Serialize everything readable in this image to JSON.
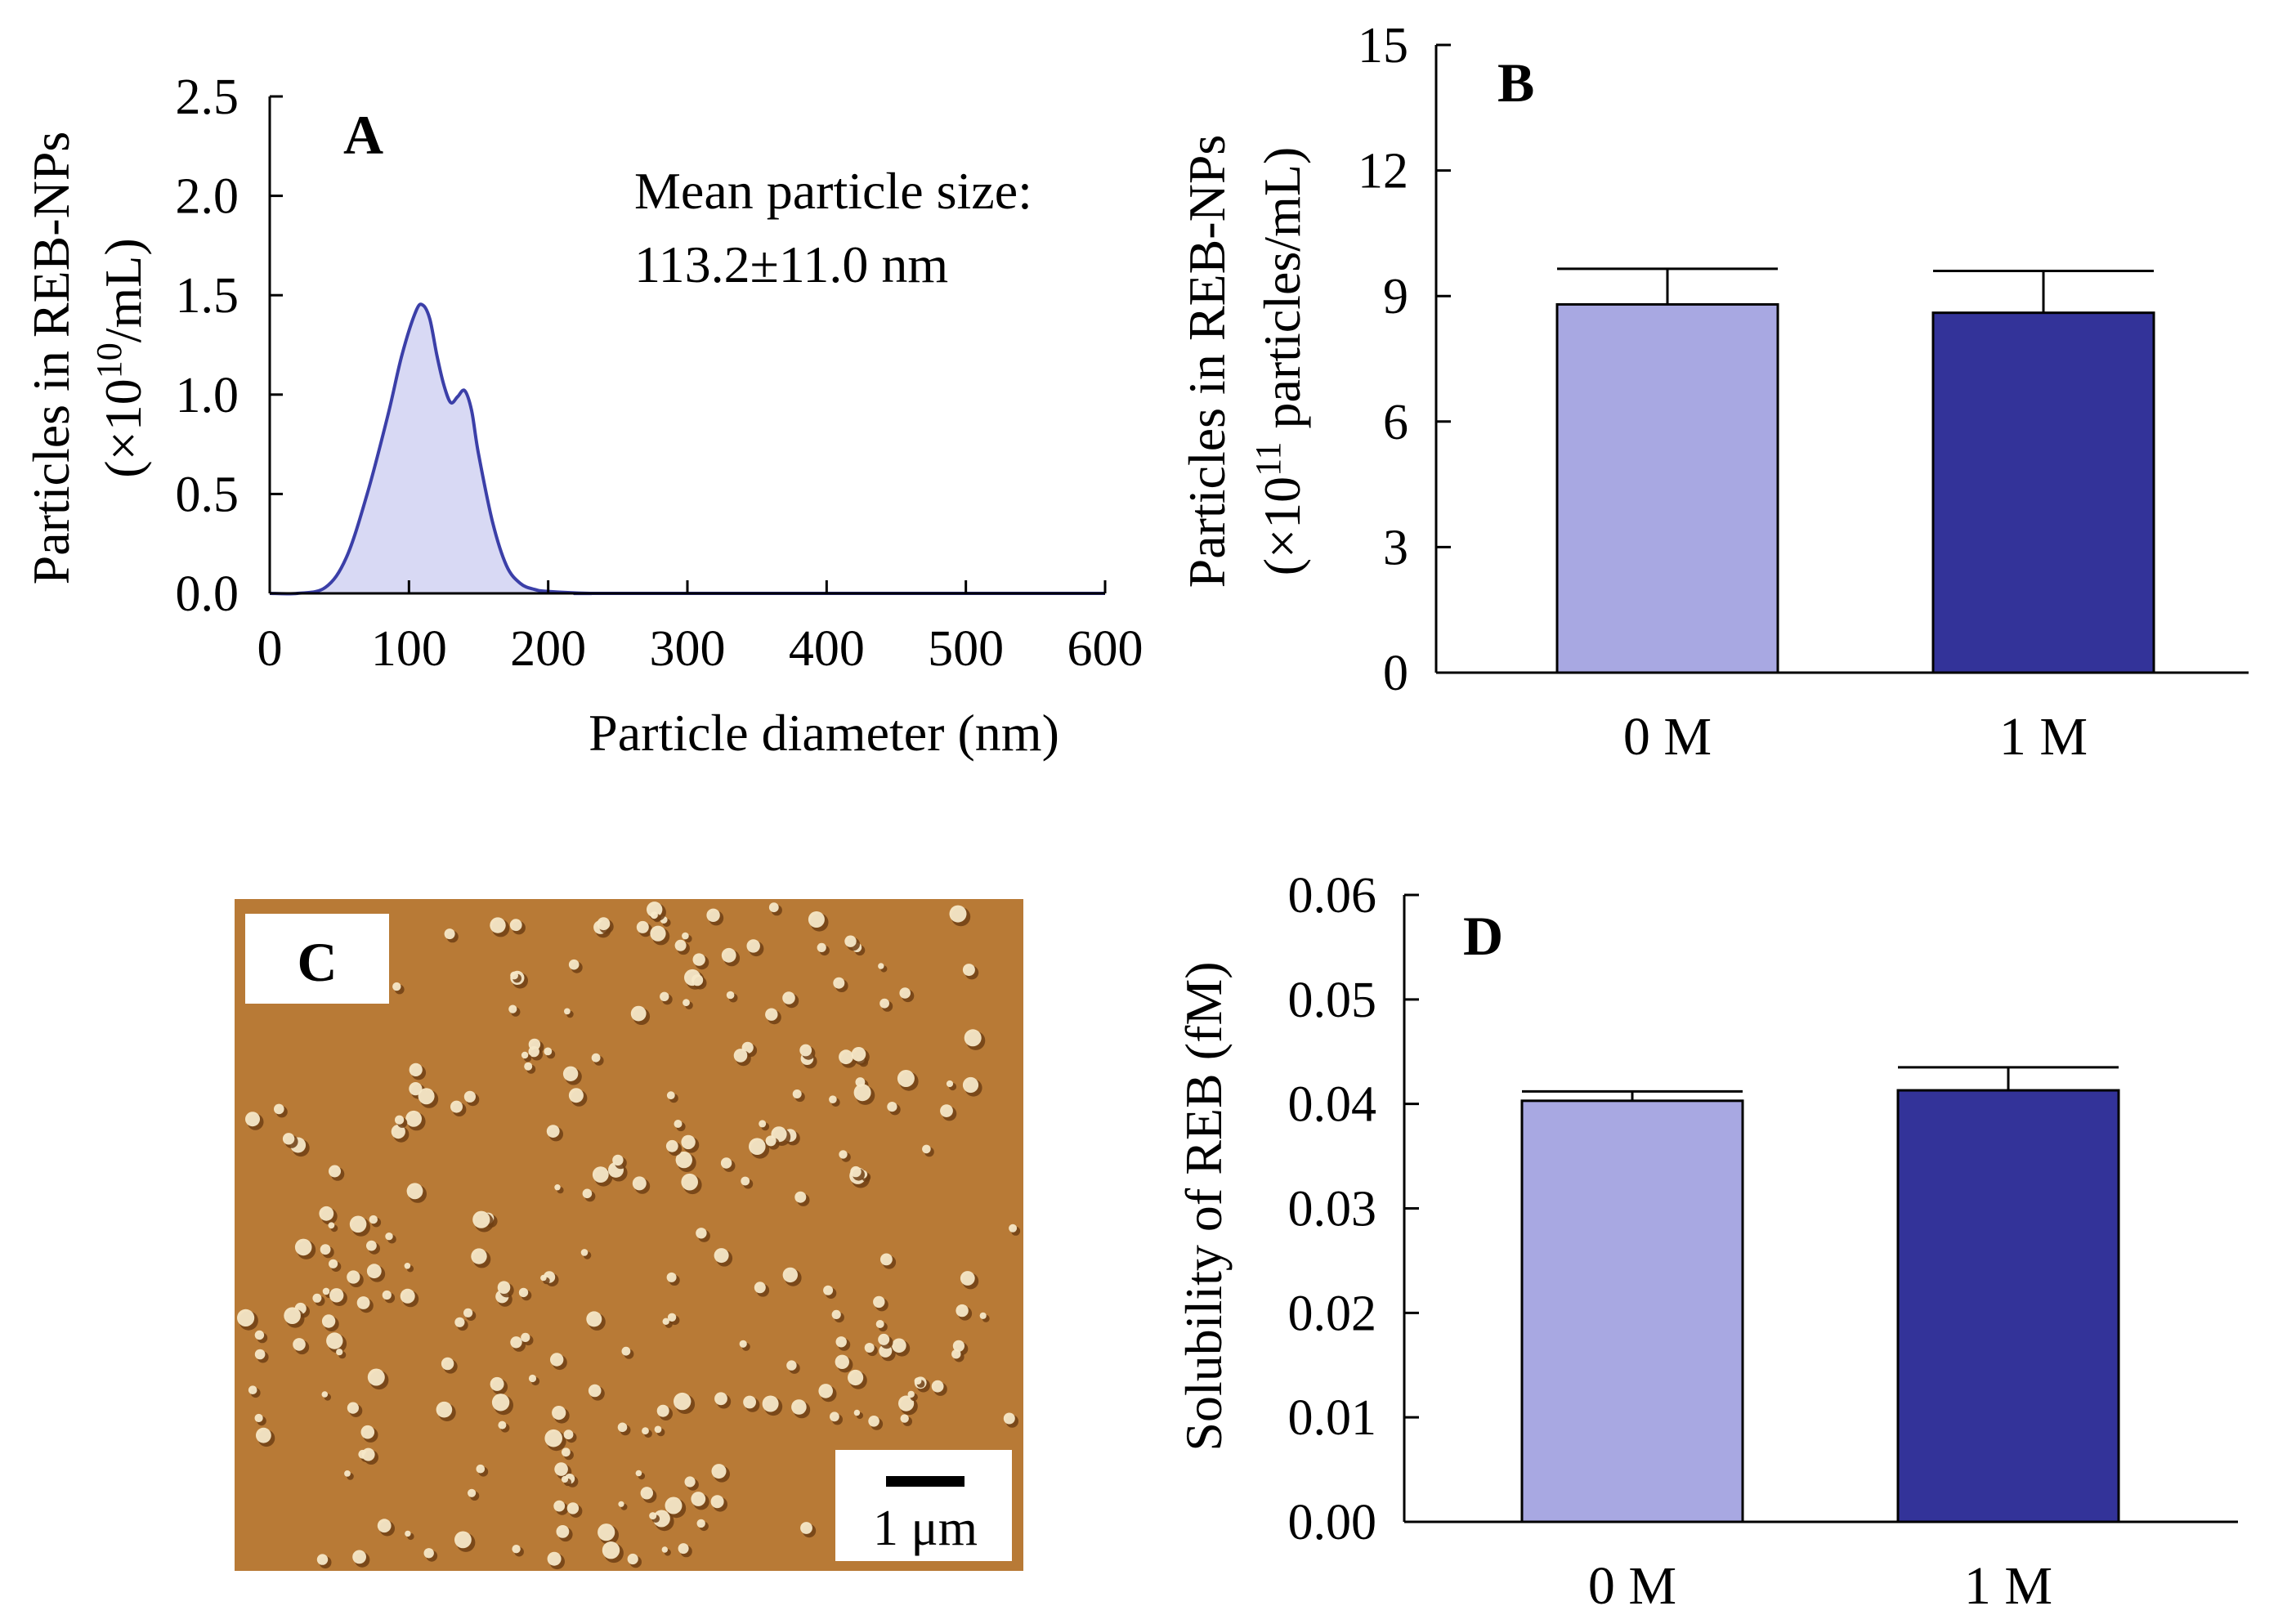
{
  "chart_data": [
    {
      "panel": "A",
      "type": "area",
      "title": "A",
      "xlabel": "Particle diameter (nm)",
      "ylabel_line1": "Particles in REB-NPs",
      "ylabel_line2": "(×10",
      "ylabel_sup": "10",
      "ylabel_tail": "/mL)",
      "xlim": [
        0,
        600
      ],
      "ylim": [
        0,
        2.5
      ],
      "xticks": [
        "0",
        "100",
        "200",
        "300",
        "400",
        "500",
        "600"
      ],
      "yticks": [
        "0.0",
        "0.5",
        "1.0",
        "1.5",
        "2.0",
        "2.5"
      ],
      "annotation_line1": "Mean particle size:",
      "annotation_line2": "113.2±11.0 nm",
      "fill_color": "#d8d9f4",
      "line_color": "#3b3fa8",
      "x": [
        0,
        20,
        40,
        55,
        70,
        85,
        95,
        105,
        110,
        115,
        120,
        125,
        130,
        135,
        140,
        145,
        150,
        160,
        170,
        180,
        190,
        200,
        230,
        250,
        600
      ],
      "y": [
        0,
        0.0,
        0.03,
        0.18,
        0.5,
        0.9,
        1.2,
        1.42,
        1.45,
        1.38,
        1.2,
        1.05,
        0.96,
        0.99,
        1.02,
        0.92,
        0.7,
        0.36,
        0.14,
        0.05,
        0.02,
        0.01,
        0.0,
        0.0,
        0.0
      ]
    },
    {
      "panel": "B",
      "type": "bar",
      "title": "B",
      "categories": [
        "0 M",
        "1 M"
      ],
      "values": [
        8.8,
        8.6
      ],
      "errors": [
        0.85,
        1.0
      ],
      "colors": [
        "#a8a8e2",
        "#333399"
      ],
      "ylim": [
        0,
        15
      ],
      "yticks": [
        "0",
        "3",
        "6",
        "9",
        "12",
        "15"
      ],
      "ylabel_line1": "Particles in REB-NPs",
      "ylabel_line2": "(×10",
      "ylabel_sup": "11",
      "ylabel_tail": " particles/mL)"
    },
    {
      "panel": "D",
      "type": "bar",
      "title": "D",
      "categories": [
        "0 M",
        "1 M"
      ],
      "values": [
        0.0403,
        0.0413
      ],
      "errors": [
        0.0009,
        0.0022
      ],
      "colors": [
        "#a8a8e2",
        "#333399"
      ],
      "ylim": [
        0,
        0.06
      ],
      "yticks": [
        "0.00",
        "0.01",
        "0.02",
        "0.03",
        "0.04",
        "0.05",
        "0.06"
      ],
      "ylabel": "Solubility of REB (fM)"
    }
  ],
  "image_panel": {
    "label": "C",
    "scale_bar_label": "1 μm",
    "background_color": "#b87a36"
  }
}
